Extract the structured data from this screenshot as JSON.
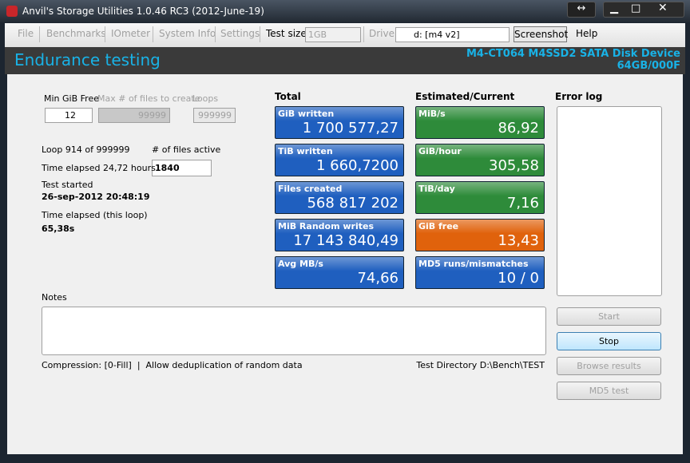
{
  "window": {
    "title": "Anvil's Storage Utilities 1.0.46 RC3 (2012-June-19)"
  },
  "menu": {
    "items": [
      "File",
      "Benchmarks",
      "IOmeter",
      "System Info",
      "Settings"
    ],
    "test_size_label": "Test size",
    "test_size": "1GB",
    "drive_label": "Drive",
    "drive": "d: [m4 v2]",
    "screenshot": "Screenshot",
    "help": "Help"
  },
  "header": {
    "title": "Endurance testing",
    "device": "M4-CT064 M4SSD2 SATA Disk Device",
    "firmware": "64GB/000F"
  },
  "settings": {
    "min_gib_free_label": "Min GiB Free",
    "min_gib_free": "12",
    "max_files_label": "Max # of files to create",
    "max_files": "99999",
    "loops_label": "Loops",
    "loops": "999999"
  },
  "status": {
    "loop": "Loop 914 of 999999",
    "files_active_label": "# of files active",
    "files_active": "1840",
    "time_elapsed": "Time elapsed 24,72 hours",
    "test_started_label": "Test started",
    "test_started": "26-sep-2012 20:48:19",
    "loop_elapsed_label": "Time elapsed (this loop)",
    "loop_elapsed": "65,38s"
  },
  "total": {
    "heading": "Total",
    "tiles": [
      {
        "label": "GiB written",
        "value": "1 700 577,27",
        "color": "#1f5fbf"
      },
      {
        "label": "TiB written",
        "value": "1 660,7200",
        "color": "#1f5fbf"
      },
      {
        "label": "Files created",
        "value": "568 817 202",
        "color": "#1f5fbf"
      },
      {
        "label": "MiB Random writes",
        "value": "17 143 840,49",
        "color": "#1f5fbf"
      },
      {
        "label": "Avg MB/s",
        "value": "74,66",
        "color": "#1f5fbf"
      }
    ]
  },
  "current": {
    "heading": "Estimated/Current",
    "tiles": [
      {
        "label": "MiB/s",
        "value": "86,92",
        "color": "#2e8b3a"
      },
      {
        "label": "GiB/hour",
        "value": "305,58",
        "color": "#2e8b3a"
      },
      {
        "label": "TiB/day",
        "value": "7,16",
        "color": "#2e8b3a"
      },
      {
        "label": "GiB free",
        "value": "13,43",
        "color": "#e0620c"
      },
      {
        "label": "MD5 runs/mismatches",
        "value": "10 / 0",
        "color": "#1f5fbf"
      }
    ]
  },
  "error_log": {
    "heading": "Error log"
  },
  "notes": {
    "label": "Notes"
  },
  "footer": {
    "compression": "Compression: [0-Fill]  |  Allow deduplication of random data",
    "directory": "Test Directory D:\\Bench\\TEST"
  },
  "buttons": [
    "Start",
    "Stop",
    "Browse results",
    "MD5 test"
  ]
}
